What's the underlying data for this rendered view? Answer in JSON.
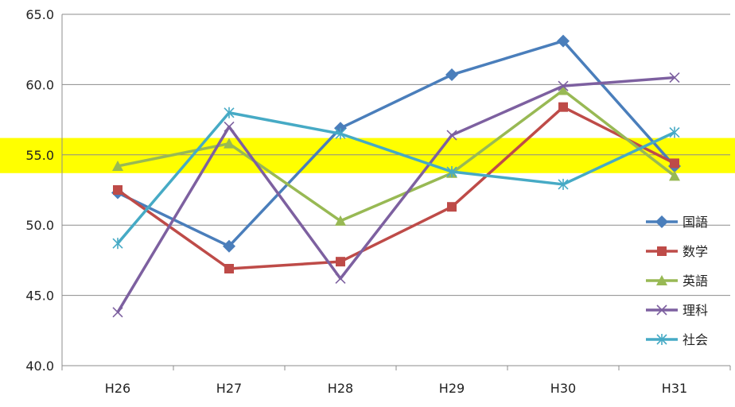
{
  "chart_data": {
    "type": "line",
    "title": "",
    "xlabel": "",
    "ylabel": "",
    "categories": [
      "H26",
      "H27",
      "H28",
      "H29",
      "H30",
      "H31"
    ],
    "ylim": [
      40.0,
      65.0
    ],
    "yticks": [
      "40.0",
      "45.0",
      "50.0",
      "55.0",
      "60.0",
      "65.0"
    ],
    "grid": "horizontal",
    "legend_position": "right",
    "highlight_band": {
      "y_from": 53.7,
      "y_to": 56.2,
      "color": "#ffff00"
    },
    "series": [
      {
        "name": "国語",
        "color": "#4a7ebb",
        "marker": "diamond",
        "values": [
          52.3,
          48.5,
          56.9,
          60.7,
          63.1,
          54.2
        ]
      },
      {
        "name": "数学",
        "color": "#be4b48",
        "marker": "square",
        "values": [
          52.5,
          46.9,
          47.4,
          51.3,
          58.4,
          54.4
        ]
      },
      {
        "name": "英語",
        "color": "#98b954",
        "marker": "triangle",
        "values": [
          54.2,
          55.8,
          50.3,
          53.7,
          59.6,
          53.5
        ]
      },
      {
        "name": "理科",
        "color": "#7d60a0",
        "marker": "x",
        "values": [
          43.8,
          57.0,
          46.2,
          56.4,
          59.9,
          60.5
        ]
      },
      {
        "name": "社会",
        "color": "#46aac5",
        "marker": "star",
        "values": [
          48.7,
          58.0,
          56.5,
          53.8,
          52.9,
          56.6
        ]
      }
    ]
  }
}
